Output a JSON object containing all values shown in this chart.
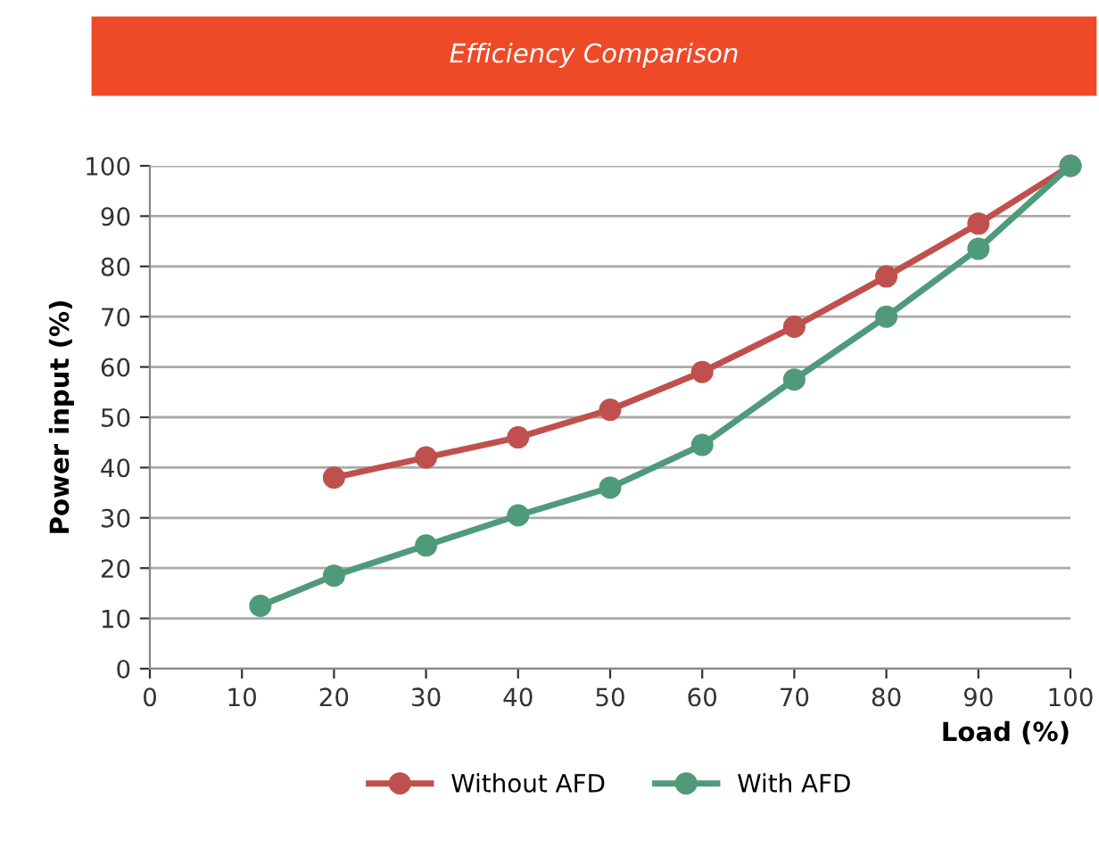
{
  "chart_data": {
    "type": "line",
    "title": "Efficiency Comparison",
    "xlabel": "Load (%)",
    "ylabel": "Power input (%)",
    "series": [
      {
        "name": "Without AFD",
        "color": "#c0504d",
        "x": [
          20,
          30,
          40,
          50,
          60,
          70,
          80,
          90,
          100
        ],
        "values": [
          38,
          42,
          46,
          51.5,
          59,
          68,
          78,
          88.5,
          100
        ]
      },
      {
        "name": "With AFD",
        "color": "#4f9a7a",
        "x": [
          12,
          20,
          30,
          40,
          50,
          60,
          70,
          80,
          90,
          100
        ],
        "values": [
          12.5,
          18.5,
          24.5,
          30.5,
          36,
          44.5,
          57.5,
          70,
          83.5,
          100
        ]
      }
    ],
    "xlim": [
      0,
      100
    ],
    "xticks": [
      0,
      10,
      20,
      30,
      40,
      50,
      60,
      70,
      80,
      90,
      100
    ],
    "ylim": [
      0,
      100
    ],
    "yticks": [
      0,
      10,
      20,
      30,
      40,
      50,
      60,
      70,
      80,
      90,
      100
    ],
    "grid": "y",
    "legend": "bottom",
    "marker": "circle",
    "line_style": "solid"
  }
}
